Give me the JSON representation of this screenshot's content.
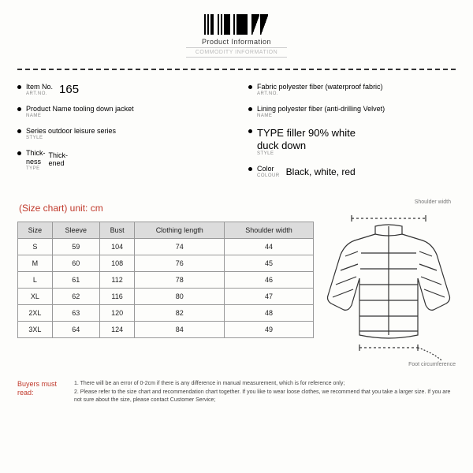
{
  "header": {
    "title": "Product Information",
    "subtitle": "COMMODITY INFORMATION"
  },
  "specs_left": [
    {
      "label": "Item No.",
      "sub": "ART.NO.",
      "value": "165",
      "big": true
    },
    {
      "label": "Product Name tooling down jacket",
      "sub": "NAME",
      "value": ""
    },
    {
      "label": "Series outdoor leisure series",
      "sub": "STYLE",
      "value": ""
    },
    {
      "label": "Thick-\nness",
      "sub": "TYPE",
      "value": "Thick-\nened",
      "stacked": true
    }
  ],
  "specs_right": [
    {
      "label": "Fabric polyester fiber (waterproof fabric)",
      "sub": "ART.NO.",
      "value": ""
    },
    {
      "label": "Lining polyester fiber (anti-drilling Velvet)",
      "sub": "NAME",
      "value": ""
    },
    {
      "label": "TYPE filler 90% white\nduck down",
      "sub": "STYLE",
      "value": "",
      "typeline": true
    },
    {
      "label": "Color",
      "sub": "COLOUR",
      "value": "Black, white, red"
    }
  ],
  "size_chart": {
    "title": "(Size chart) unit: cm",
    "columns": [
      "Size",
      "Sleeve",
      "Bust",
      "Clothing length",
      "Shoulder width"
    ],
    "rows": [
      [
        "S",
        "59",
        "104",
        "74",
        "44"
      ],
      [
        "M",
        "60",
        "108",
        "76",
        "45"
      ],
      [
        "L",
        "61",
        "112",
        "78",
        "46"
      ],
      [
        "XL",
        "62",
        "116",
        "80",
        "47"
      ],
      [
        "2XL",
        "63",
        "120",
        "82",
        "48"
      ],
      [
        "3XL",
        "64",
        "124",
        "84",
        "49"
      ]
    ]
  },
  "diagram": {
    "top_label": "Shoulder width",
    "side_label": "Foot circumference"
  },
  "notes": {
    "heading": "Buyers must read:",
    "lines": [
      "1. There will be an error of 0-2cm if there is any difference in manual measurement, which is for reference only;",
      "2. Please refer to the size chart and recommendation chart together. If you like to wear loose clothes, we recommend that you take a larger size. If you are not sure about the size, please contact Customer Service;"
    ]
  }
}
